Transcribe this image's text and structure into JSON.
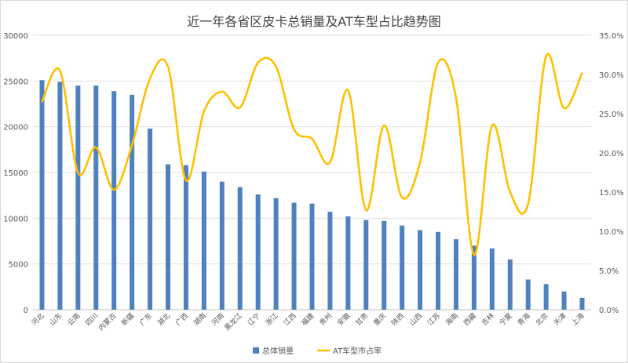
{
  "chart_data": {
    "type": "bar+line",
    "title": "近一年各省区皮卡总销量及AT车型占比趋势图",
    "categories": [
      "河北",
      "山东",
      "云南",
      "四川",
      "内蒙古",
      "新疆",
      "广东",
      "湖北",
      "广西",
      "湖南",
      "河南",
      "黑龙江",
      "辽宁",
      "浙江",
      "江西",
      "福建",
      "贵州",
      "安徽",
      "甘肃",
      "重庆",
      "陕西",
      "山西",
      "江苏",
      "海南",
      "西藏",
      "吉林",
      "宁夏",
      "青海",
      "北京",
      "天津",
      "上海"
    ],
    "series": [
      {
        "name": "总体销量",
        "type": "bar",
        "axis": "left",
        "color": "#4f81bd",
        "values": [
          25100,
          24900,
          24500,
          24500,
          23900,
          23500,
          19800,
          15900,
          15800,
          15100,
          14000,
          13400,
          12600,
          12200,
          11700,
          11600,
          10700,
          10200,
          9800,
          9700,
          9200,
          8700,
          8500,
          7700,
          7000,
          6700,
          5500,
          3300,
          2800,
          2000,
          1300
        ]
      },
      {
        "name": "AT车型市占率",
        "type": "line",
        "axis": "right",
        "color": "#ffc000",
        "values": [
          26.5,
          30.5,
          17.5,
          20.7,
          15.3,
          21.0,
          29.5,
          31.0,
          16.5,
          25.3,
          27.8,
          25.8,
          31.5,
          31.0,
          23.0,
          21.8,
          18.8,
          28.0,
          12.7,
          23.5,
          14.3,
          18.8,
          31.5,
          27.0,
          7.0,
          23.5,
          15.0,
          13.5,
          32.3,
          25.7,
          30.2
        ]
      }
    ],
    "y_left": {
      "min": 0,
      "max": 30000,
      "ticks": [
        "0",
        "5000",
        "10000",
        "15000",
        "20000",
        "25000",
        "30000"
      ]
    },
    "y_right": {
      "min": 0,
      "max": 35,
      "ticks": [
        "0.0%",
        "5.0%",
        "10.0%",
        "15.0%",
        "20.0%",
        "25.0%",
        "30.0%",
        "35.0%"
      ]
    },
    "grid": true,
    "legend_position": "bottom"
  }
}
